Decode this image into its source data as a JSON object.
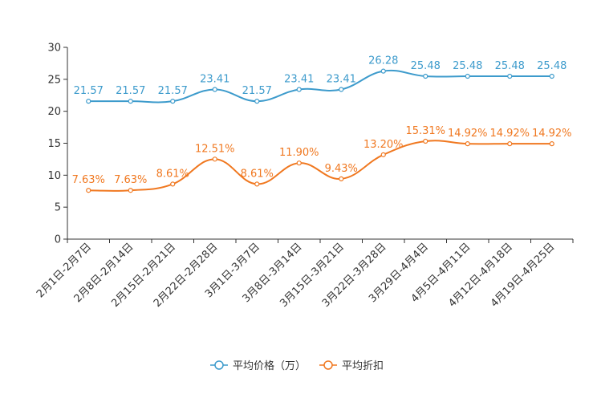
{
  "chart_data": {
    "type": "line",
    "title": "",
    "xlabel": "",
    "ylabel": "",
    "ylim": [
      0,
      30
    ],
    "yticks": [
      0,
      5,
      10,
      15,
      20,
      25,
      30
    ],
    "grid": false,
    "legend_position": "bottom-center",
    "categories": [
      "2月1日-2月7日",
      "2月8日-2月14日",
      "2月15日-2月21日",
      "2月22日-2月28日",
      "3月1日-3月7日",
      "3月8日-3月14日",
      "3月15日-3月21日",
      "3月22日-3月28日",
      "3月29日-4月4日",
      "4月5日-4月11日",
      "4月12日-4月18日",
      "4月19日-4月25日"
    ],
    "series": [
      {
        "name": "平均价格（万）",
        "color": "#3d9bcc",
        "values": [
          21.57,
          21.57,
          21.57,
          23.41,
          21.57,
          23.41,
          23.41,
          26.28,
          25.48,
          25.48,
          25.48,
          25.48
        ],
        "labels": [
          "21.57",
          "21.57",
          "21.57",
          "23.41",
          "21.57",
          "23.41",
          "23.41",
          "26.28",
          "25.48",
          "25.48",
          "25.48",
          "25.48"
        ]
      },
      {
        "name": "平均折扣",
        "color": "#f07820",
        "values": [
          7.63,
          7.63,
          8.61,
          12.51,
          8.61,
          11.9,
          9.43,
          13.2,
          15.31,
          14.92,
          14.92,
          14.92
        ],
        "labels": [
          "7.63%",
          "7.63%",
          "8.61%",
          "12.51%",
          "8.61%",
          "11.90%",
          "9.43%",
          "13.20%",
          "15.31%",
          "14.92%",
          "14.92%",
          "14.92%"
        ]
      }
    ]
  }
}
